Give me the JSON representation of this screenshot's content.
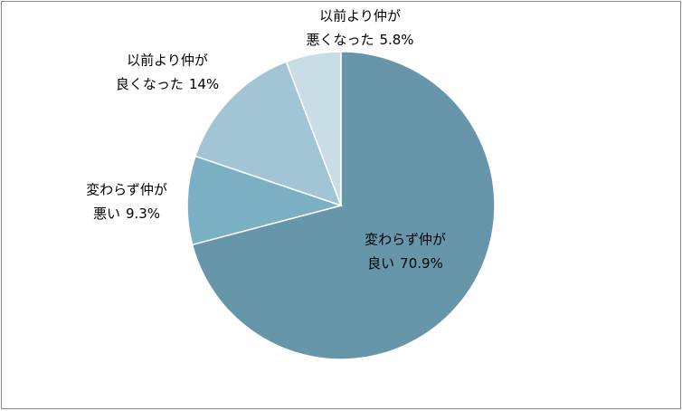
{
  "chart_data": {
    "type": "pie",
    "categories": [
      [
        "変わらず仲が",
        "良い"
      ],
      [
        "変わらず仲が",
        "悪い"
      ],
      [
        "以前より仲が",
        "良くなった"
      ],
      [
        "以前より仲が",
        "悪くなった"
      ]
    ],
    "values": [
      70.9,
      9.3,
      14,
      5.8
    ],
    "value_labels": [
      "70.9%",
      "9.3%",
      "14%",
      "5.8%"
    ],
    "colors": [
      "#6796ab",
      "#7aafc4",
      "#a2c5d6",
      "#c9dde6"
    ]
  }
}
